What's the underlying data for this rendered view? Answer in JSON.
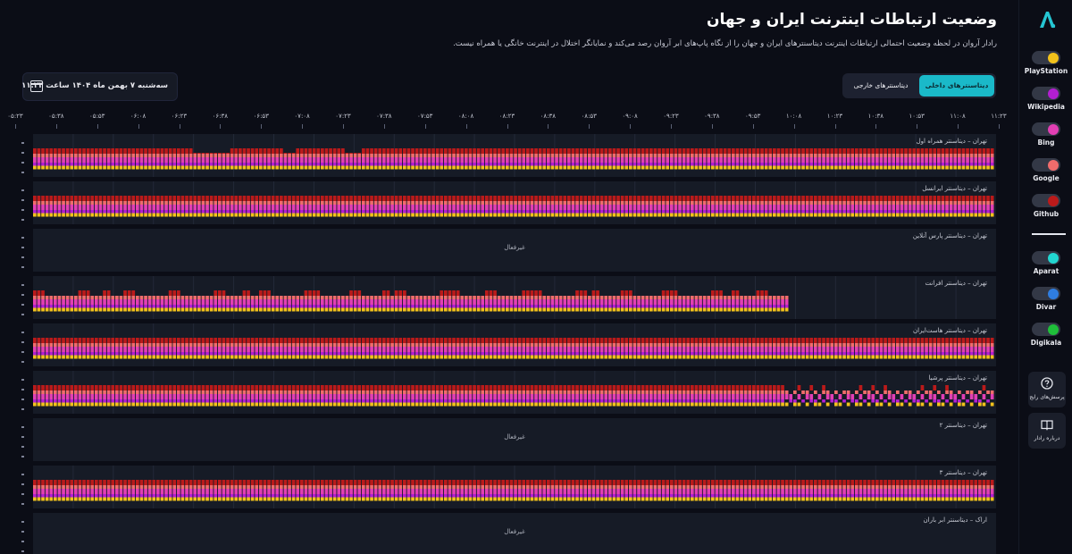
{
  "header": {
    "title": "وضعیت ارتباطات اینترنت ایران و جهان",
    "subtitle": "رادار آروان در لحظه وضعیت احتمالی ارتباطات اینترنت دیتاسنترهای ایران و جهان را از نگاه پاپ‌های ابر آروان رصد می‌کند و نمایانگر اختلال در اینترنت خانگی یا همراه نیست."
  },
  "datetime": {
    "text": "سه‌شنبه ۷ بهمن ماه ۱۴۰۴ ساعت ۱۱:۲۳",
    "icon": "calendar-icon"
  },
  "tabs": [
    {
      "label": "دیتاسنترهای داخلی",
      "active": true
    },
    {
      "label": "دیتاسنترهای خارجی",
      "active": false
    }
  ],
  "time_axis": [
    "۰۵:۲۳",
    "۰۵:۳۸",
    "۰۵:۵۳",
    "۰۶:۰۸",
    "۰۶:۲۳",
    "۰۶:۳۸",
    "۰۶:۵۳",
    "۰۷:۰۸",
    "۰۷:۲۳",
    "۰۷:۳۸",
    "۰۷:۵۳",
    "۰۸:۰۸",
    "۰۸:۲۳",
    "۰۸:۳۸",
    "۰۸:۵۳",
    "۰۹:۰۸",
    "۰۹:۲۳",
    "۰۹:۳۸",
    "۰۹:۵۳",
    "۱۰:۰۸",
    "۱۰:۲۳",
    "۱۰:۳۸",
    "۱۰:۵۳",
    "۱۱:۰۸",
    "۱۱:۲۳"
  ],
  "panels": [
    {
      "label": "تهران – دیتاسنتر همراه اول",
      "status": "full_dip",
      "empty_text": ""
    },
    {
      "label": "تهران – دیتاسنتر ایرانسل",
      "status": "full",
      "empty_text": ""
    },
    {
      "label": "تهران – دیتاسنتر پارس آنلاین",
      "status": "empty",
      "empty_text": "غیرفعال"
    },
    {
      "label": "تهران – دیتاسنتر افرانت",
      "status": "partial",
      "empty_text": ""
    },
    {
      "label": "تهران – دیتاسنتر هاست‌ایران",
      "status": "full",
      "empty_text": ""
    },
    {
      "label": "تهران – دیتاسنتر پرشیا",
      "status": "degraded",
      "empty_text": ""
    },
    {
      "label": "تهران – دیتاسنتر ۲",
      "status": "empty",
      "empty_text": "غیرفعال"
    },
    {
      "label": "تهران – دیتاسنتر ۳",
      "status": "full",
      "empty_text": ""
    },
    {
      "label": "اراک – دیتاسنتر ابر باران",
      "status": "empty",
      "empty_text": "غیرفعال"
    }
  ],
  "services_primary": [
    {
      "name": "PlayStation",
      "color": "#f2c21b"
    },
    {
      "name": "Wikipedia",
      "color": "#b31fd1"
    },
    {
      "name": "Bing",
      "color": "#e23fb4"
    },
    {
      "name": "Google",
      "color": "#f06c6c"
    },
    {
      "name": "Github",
      "color": "#bb1a1a"
    }
  ],
  "services_secondary": [
    {
      "name": "Aparat",
      "color": "#22d7d1"
    },
    {
      "name": "Divar",
      "color": "#2f7de0"
    },
    {
      "name": "Digikala",
      "color": "#1fbf3a"
    }
  ],
  "sidebar_buttons": [
    {
      "label": "پرسش‌های رایج",
      "icon": "question-icon"
    },
    {
      "label": "درباره رادار",
      "icon": "book-icon"
    }
  ]
}
